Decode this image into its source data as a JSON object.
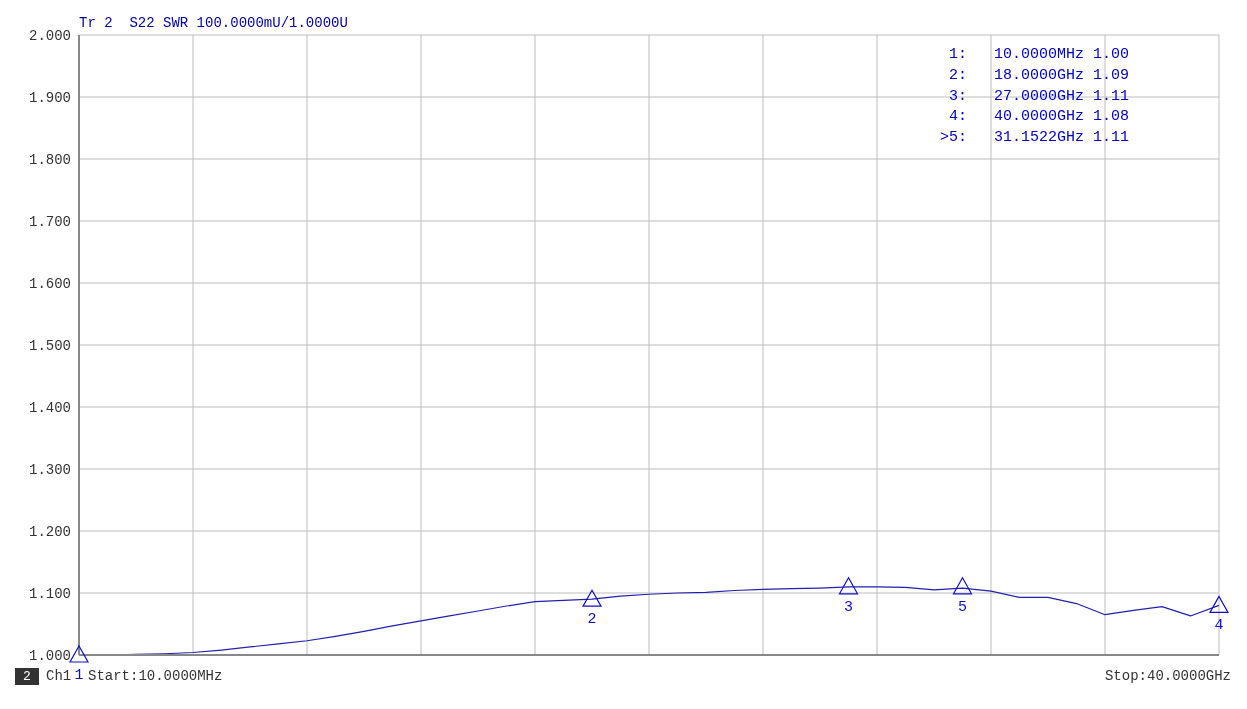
{
  "chart_data": {
    "type": "line",
    "title": "Tr 2  S22 SWR 100.0000mU/1.0000U",
    "categories": [
      null,
      null,
      null,
      null,
      null,
      null,
      null,
      null,
      null,
      null,
      null,
      null,
      null,
      null,
      null,
      null,
      null,
      null,
      null,
      null,
      null,
      null,
      null,
      null,
      null,
      null,
      null,
      null,
      null,
      null,
      null,
      null,
      null,
      null,
      null,
      null,
      null,
      null,
      null,
      null,
      null
    ],
    "series": [
      {
        "color": "#2020b0",
        "values": [
          1.0,
          1.0,
          1.001,
          1.002,
          1.004,
          1.008,
          1.013,
          1.018,
          1.023,
          1.03,
          1.038,
          1.047,
          1.055,
          1.063,
          1.071,
          1.079,
          1.086,
          1.088,
          1.09,
          1.095,
          1.098,
          1.1,
          1.101,
          1.104,
          1.106,
          1.107,
          1.108,
          1.11,
          1.11,
          1.109,
          1.105,
          1.108,
          1.103,
          1.093,
          1.093,
          1.083,
          1.065,
          1.072,
          1.078,
          1.063,
          1.08
        ]
      },
      {
        "type": "scatter",
        "marker": "triangle",
        "color": "#1010c0",
        "values": [
          1.0,
          null,
          null,
          null,
          null,
          null,
          null,
          null,
          null,
          null,
          null,
          null,
          null,
          null,
          null,
          null,
          null,
          null,
          1.09,
          null,
          null,
          null,
          null,
          null,
          null,
          null,
          null,
          1.11,
          null,
          null,
          null,
          1.11,
          null,
          null,
          null,
          null,
          null,
          null,
          null,
          null,
          1.08
        ]
      }
    ],
    "ylim": [
      1,
      2
    ],
    "yticks": [
      {
        "value": 1,
        "label": "1.000"
      },
      {
        "value": 1.1,
        "label": "1.100"
      },
      {
        "value": 1.2,
        "label": "1.200"
      },
      {
        "value": 1.3,
        "label": "1.300"
      },
      {
        "value": 1.4,
        "label": "1.400"
      },
      {
        "value": 1.5,
        "label": "1.500"
      },
      {
        "value": 1.6,
        "label": "1.600"
      },
      {
        "value": 1.7,
        "label": "1.700"
      },
      {
        "value": 1.8,
        "label": "1.800"
      },
      {
        "value": 1.9,
        "label": "1.900"
      },
      {
        "value": 2,
        "label": "2.000"
      }
    ],
    "grid": true,
    "tick_labels": "y",
    "annotations": [
      "1:   10.0000MHz 1.00",
      "2:   18.0000GHz 1.09",
      "3:   27.0000GHz 1.11",
      "4:   40.0000GHz 1.08",
      ">5:   31.1522GHz 1.11",
      "2",
      "Ch1",
      "Start:10.0000MHz",
      "Stop:40.0000GHz",
      "1",
      "2",
      "3",
      "5",
      "4"
    ]
  }
}
